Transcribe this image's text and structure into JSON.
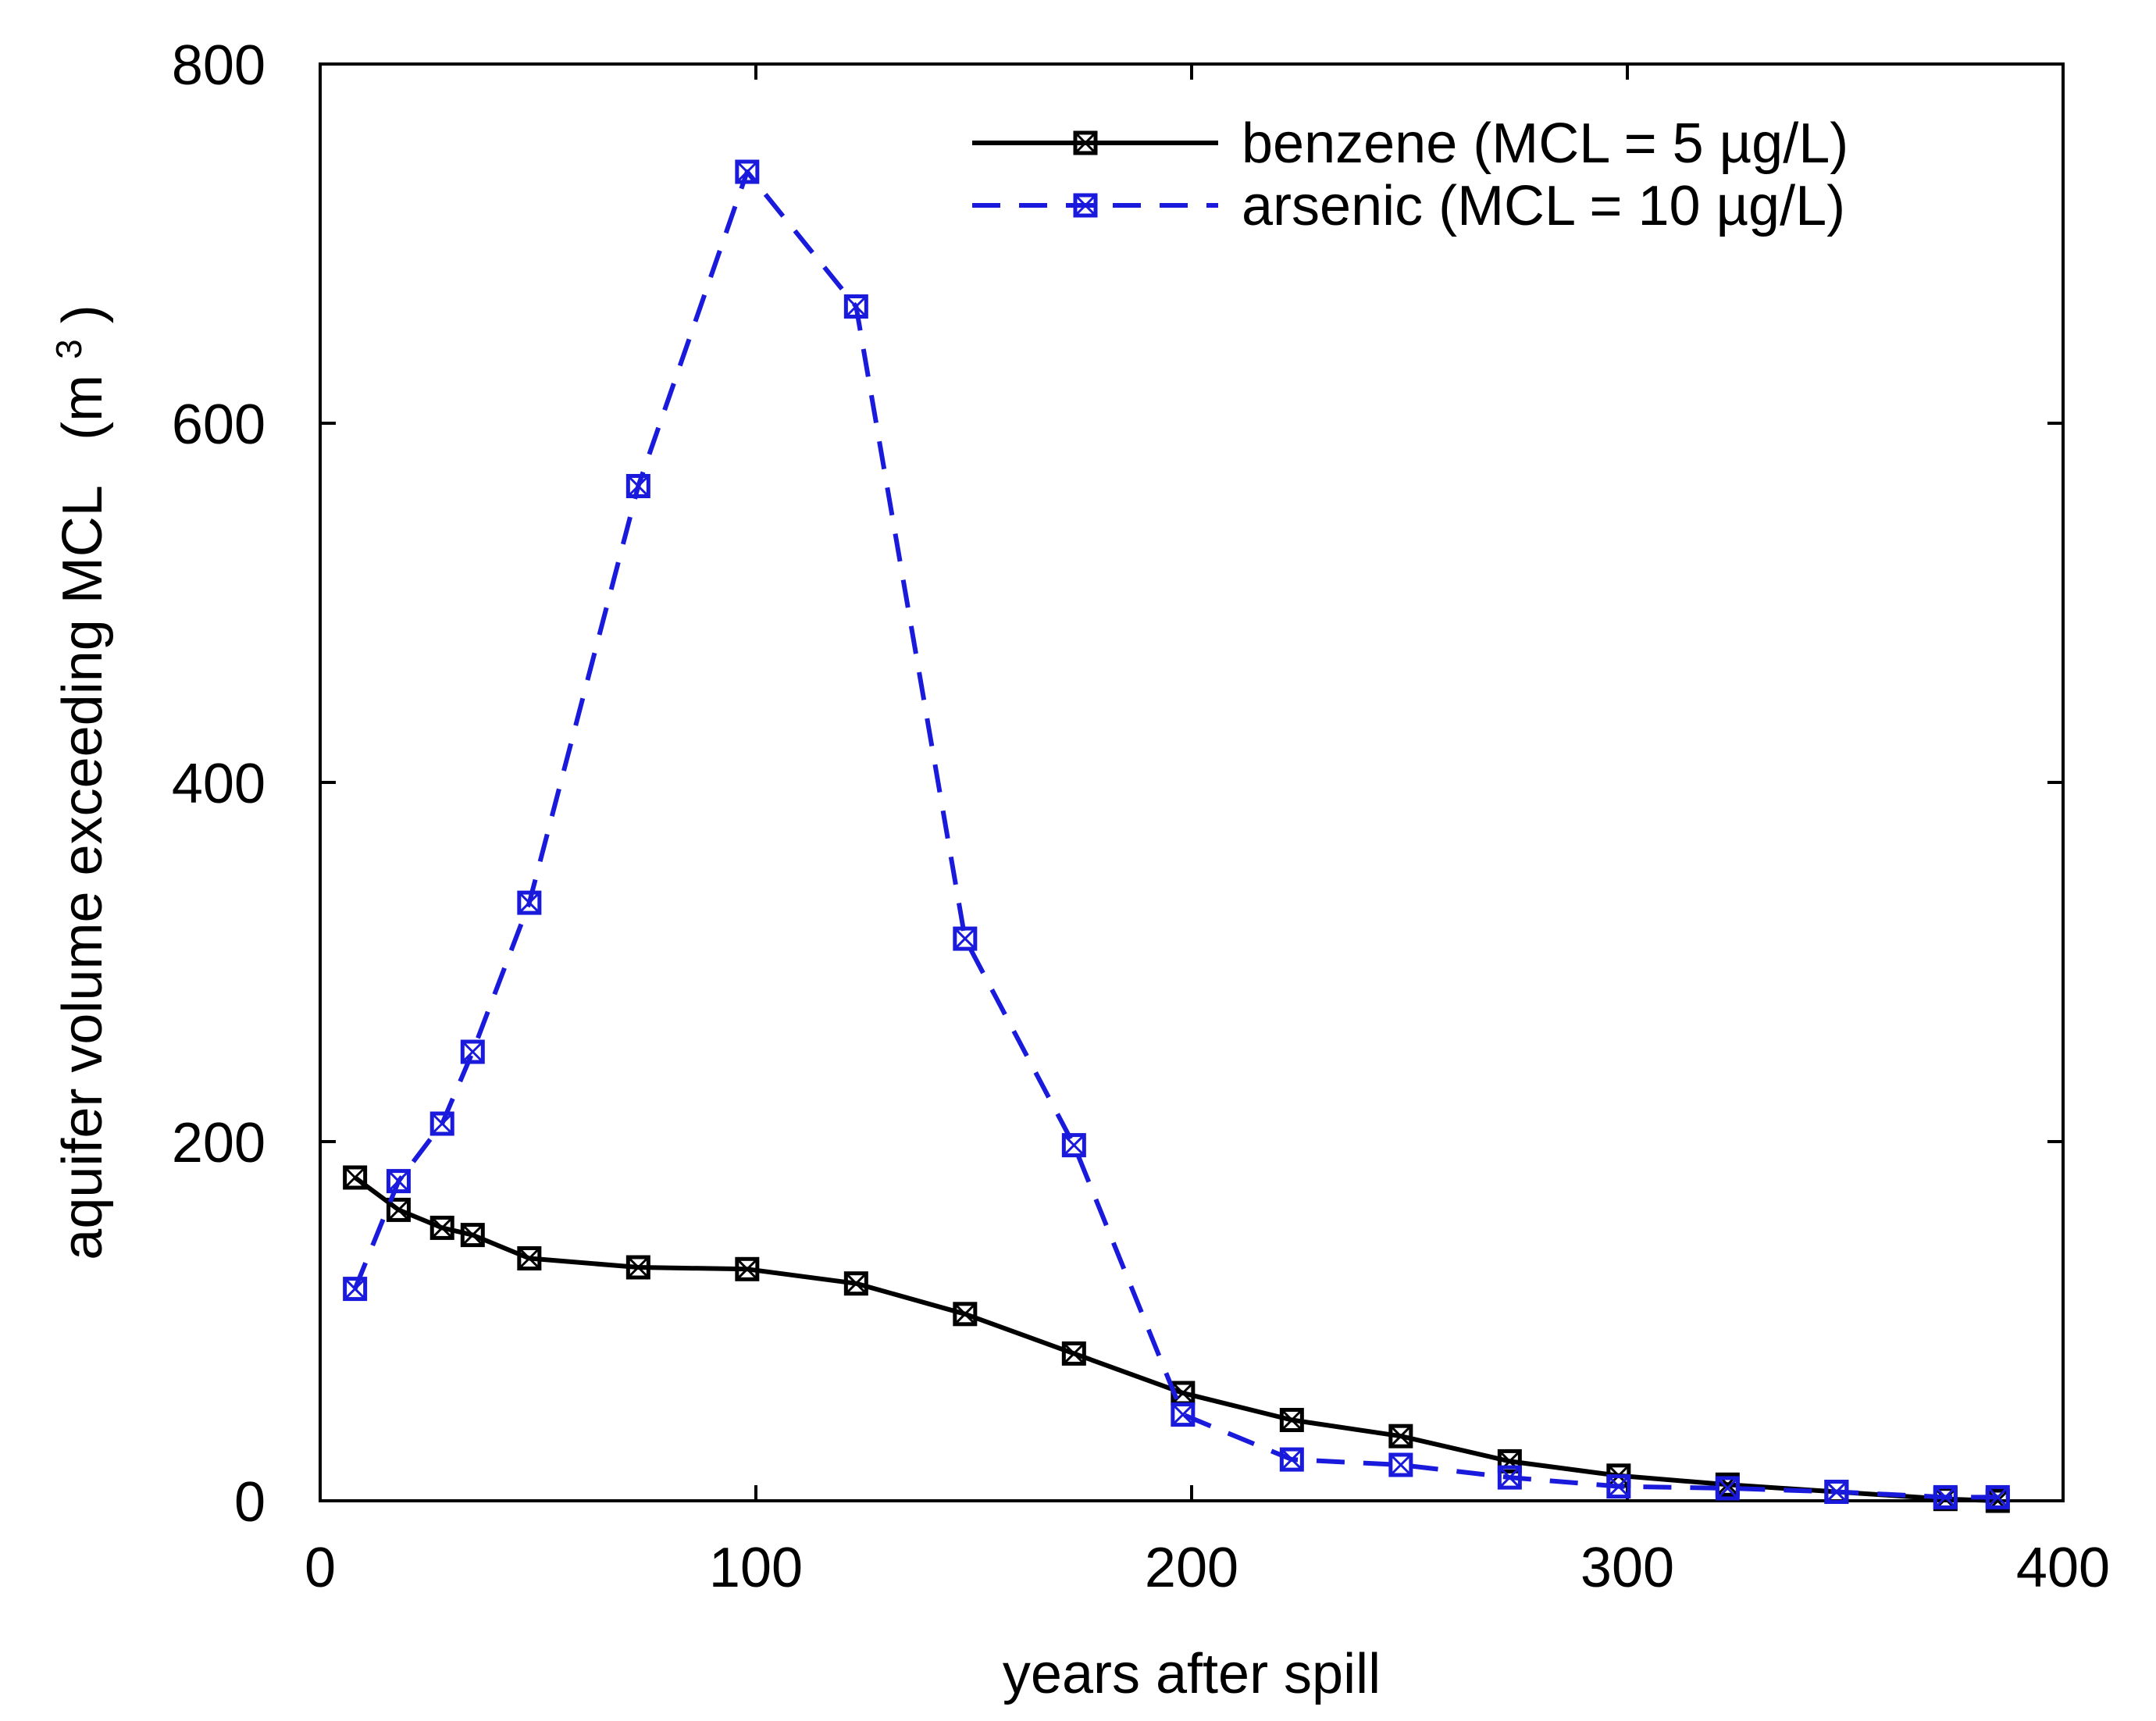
{
  "chart_data": {
    "type": "line",
    "title": "",
    "xlabel": "years after spill",
    "ylabel": "aquifer volume exceeding MCL",
    "ylabel_unit_base": "(m",
    "ylabel_unit_exp": "3",
    "ylabel_unit_close": ")",
    "xlim": [
      0,
      400
    ],
    "ylim": [
      0,
      800
    ],
    "x_ticks": [
      0,
      100,
      200,
      300,
      400
    ],
    "y_ticks": [
      0,
      200,
      400,
      600,
      800
    ],
    "x_tick_labels": [
      "0",
      "100",
      "200",
      "300",
      "400"
    ],
    "y_tick_labels": [
      "0",
      "200",
      "400",
      "600",
      "800"
    ],
    "grid": false,
    "legend_position": "top-right",
    "series": [
      {
        "name": "benzene (MCL = 5 µg/L)",
        "color": "#000000",
        "line_style": "solid",
        "marker": "square-x",
        "x": [
          8,
          18,
          28,
          35,
          48,
          73,
          98,
          123,
          148,
          173,
          198,
          223,
          248,
          273,
          298,
          323,
          348,
          373,
          385
        ],
        "y": [
          180,
          162,
          152,
          148,
          135,
          130,
          129,
          121,
          104,
          82,
          60,
          45,
          36,
          22,
          14,
          9,
          5,
          1,
          0
        ]
      },
      {
        "name": "arsenic (MCL = 10 µg/L)",
        "color": "#1a1adc",
        "line_style": "dashed",
        "marker": "square-x",
        "x": [
          8,
          18,
          28,
          35,
          48,
          73,
          98,
          123,
          148,
          173,
          198,
          223,
          248,
          273,
          298,
          323,
          348,
          373,
          385
        ],
        "y": [
          118,
          178,
          210,
          250,
          333,
          565,
          740,
          665,
          313,
          198,
          48,
          23,
          20,
          13,
          8,
          7,
          5,
          2,
          2
        ]
      }
    ]
  }
}
